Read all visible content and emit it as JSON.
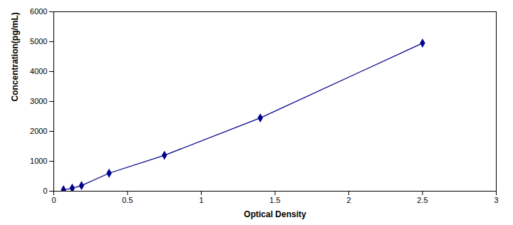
{
  "chart_data": {
    "type": "line",
    "x": [
      0.066,
      0.125,
      0.188,
      0.375,
      0.75,
      1.4,
      2.5
    ],
    "values": [
      47,
      100,
      187,
      600,
      1200,
      2450,
      4950
    ],
    "color": "#00008B",
    "marker": "diamond",
    "line_style": "solid",
    "xlabel": "Optical Density",
    "ylabel": "Concentration(pg/mL)",
    "xlim": [
      0,
      3
    ],
    "ylim": [
      0,
      6000
    ],
    "xticks": [
      0,
      0.5,
      1,
      1.5,
      2,
      2.5,
      3
    ],
    "yticks": [
      0,
      1000,
      2000,
      3000,
      4000,
      5000,
      6000
    ],
    "grid": false
  }
}
